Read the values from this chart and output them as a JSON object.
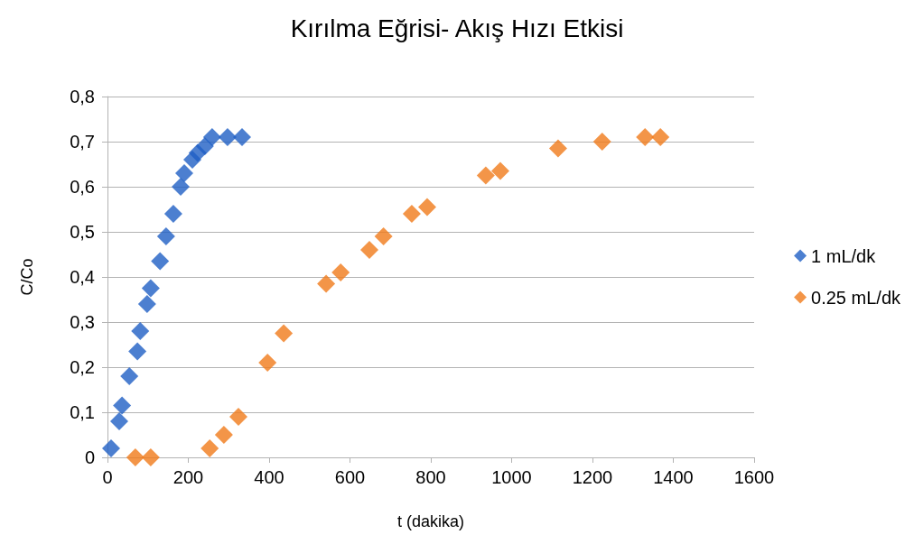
{
  "chart_data": {
    "type": "scatter",
    "title": "Kırılma Eğrisi- Akış Hızı Etkisi",
    "xlabel": "t (dakika)",
    "ylabel": "C/Co",
    "xlim": [
      0,
      1600
    ],
    "xticks": [
      0,
      200,
      400,
      600,
      800,
      1000,
      1200,
      1400,
      1600
    ],
    "ylim": [
      0,
      0.8
    ],
    "yticks": [
      {
        "value": 0,
        "label": "0"
      },
      {
        "value": 0.1,
        "label": "0,1"
      },
      {
        "value": 0.2,
        "label": "0,2"
      },
      {
        "value": 0.3,
        "label": "0,3"
      },
      {
        "value": 0.4,
        "label": "0,4"
      },
      {
        "value": 0.5,
        "label": "0,5"
      },
      {
        "value": 0.6,
        "label": "0,6"
      },
      {
        "value": 0.7,
        "label": "0,7"
      },
      {
        "value": 0.8,
        "label": "0,8"
      }
    ],
    "grid": "y",
    "legend": "right",
    "marker": "diamond",
    "series": [
      {
        "name": "1 mL/dk",
        "color": "#1f5fc4",
        "x": [
          9,
          29,
          36,
          54,
          74,
          81,
          98,
          107,
          130,
          145,
          163,
          181,
          190,
          210,
          223,
          241,
          259,
          297,
          333
        ],
        "values": [
          0.02,
          0.08,
          0.115,
          0.18,
          0.235,
          0.28,
          0.34,
          0.375,
          0.435,
          0.49,
          0.54,
          0.6,
          0.63,
          0.66,
          0.675,
          0.69,
          0.71,
          0.71,
          0.71
        ]
      },
      {
        "name": "0.25 mL/dk",
        "color": "#f07a1a",
        "x": [
          69,
          107,
          253,
          288,
          324,
          396,
          436,
          541,
          577,
          648,
          683,
          753,
          791,
          936,
          972,
          1115,
          1224,
          1330,
          1368
        ],
        "values": [
          0,
          0,
          0.02,
          0.05,
          0.09,
          0.21,
          0.275,
          0.385,
          0.41,
          0.46,
          0.49,
          0.54,
          0.555,
          0.625,
          0.635,
          0.685,
          0.7,
          0.71,
          0.71
        ]
      }
    ]
  }
}
